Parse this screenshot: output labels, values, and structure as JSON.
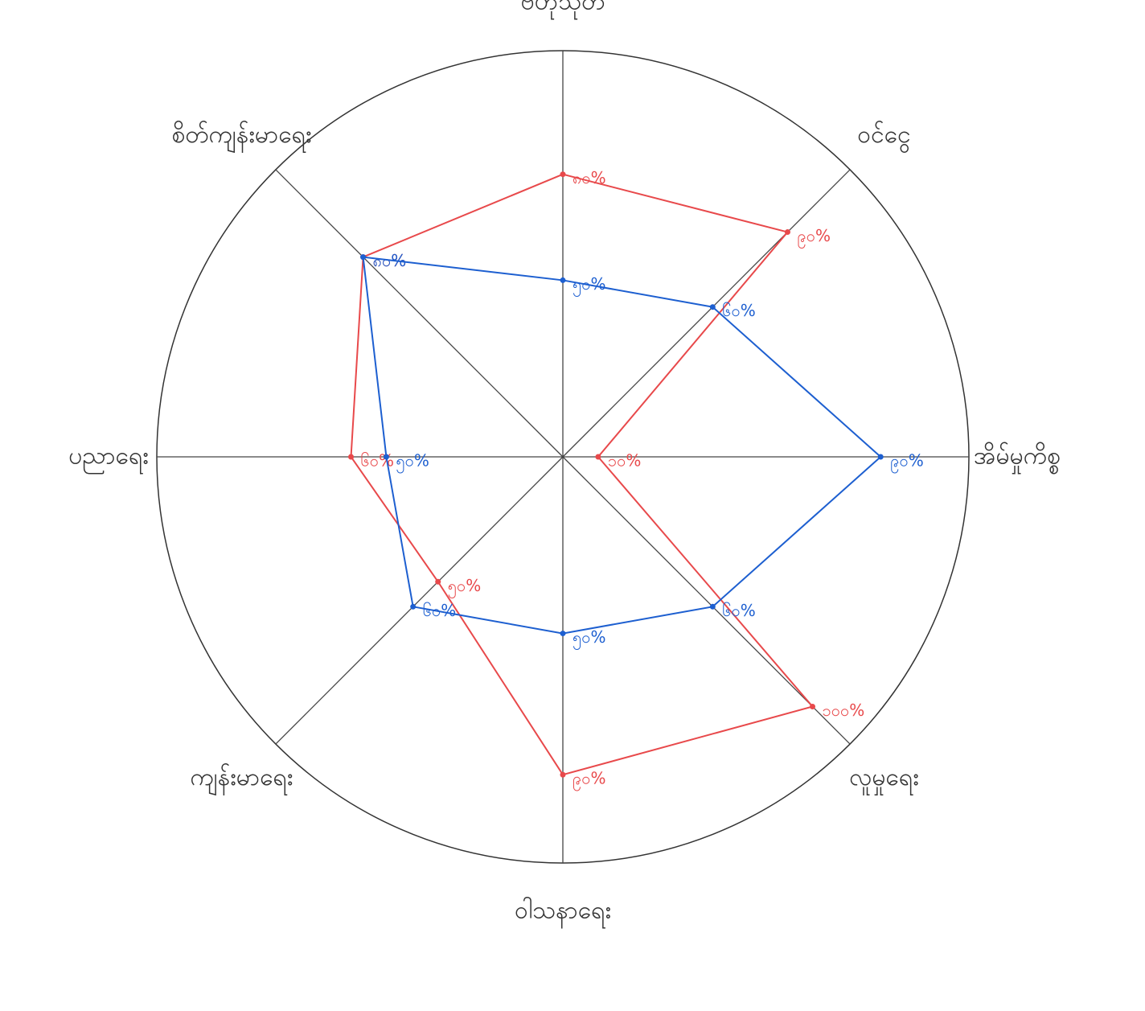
{
  "chart_data": {
    "type": "radar",
    "categories": [
      "ဗဟုသုတ",
      "ဝင်ငွေ",
      "အိမ်မှုကိစ္စ",
      "လူမှုရေး",
      "ဝါသနာရေး",
      "ကျန်းမာရေး",
      "ပညာရေး",
      "စိတ်ကျန်းမာရေး"
    ],
    "series": [
      {
        "name": "red",
        "color": "#e8494b",
        "values": [
          80,
          90,
          10,
          100,
          90,
          50,
          60,
          80
        ],
        "value_labels": [
          "၈၀%",
          "၉၀%",
          "၁၀%",
          "၁၀၀%",
          "၉၀%",
          "၅၀%",
          "၆၀%",
          "၈၀%"
        ]
      },
      {
        "name": "blue",
        "color": "#1d5fd0",
        "values": [
          50,
          60,
          90,
          60,
          50,
          60,
          50,
          80
        ],
        "value_labels": [
          "၅၀%",
          "၆၀%",
          "၉၀%",
          "၆၀%",
          "၅၀%",
          "၆၀%",
          "၅၀%",
          "၈၀%"
        ]
      }
    ],
    "rlim": [
      0,
      115
    ]
  }
}
